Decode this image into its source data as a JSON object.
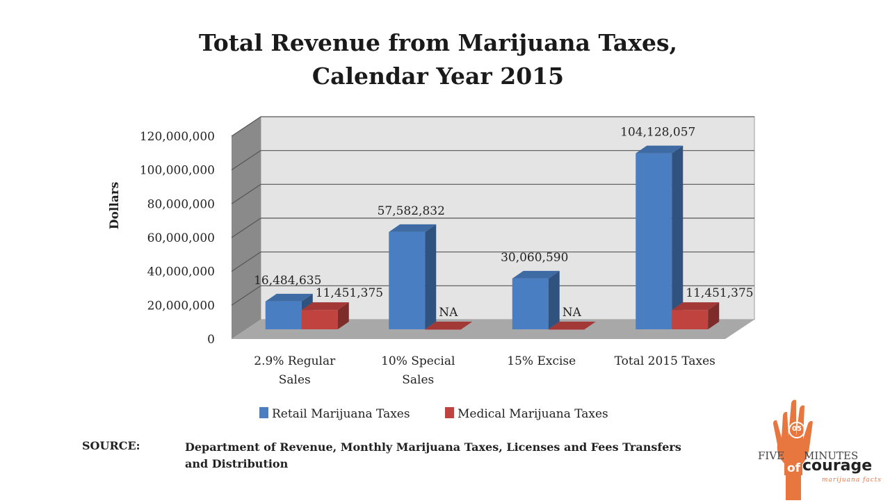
{
  "chart_data": {
    "type": "bar",
    "title": "Total Revenue from Marijuana Taxes,",
    "subtitle": "Calendar Year 2015",
    "ylabel": "Dollars",
    "xlabel": "",
    "ylim": [
      0,
      120000000
    ],
    "yticks": [
      0,
      20000000,
      40000000,
      60000000,
      80000000,
      100000000,
      120000000
    ],
    "ytick_labels": [
      "0",
      "20,000,000",
      "40,000,000",
      "60,000,000",
      "80,000,000",
      "100,000,000",
      "120,000,000"
    ],
    "categories": [
      [
        "2.9% Regular",
        "Sales"
      ],
      [
        "10% Special",
        "Sales"
      ],
      [
        "15% Excise"
      ],
      [
        "Total 2015 Taxes"
      ]
    ],
    "series": [
      {
        "name": "Retail Marijuana Taxes",
        "color": "#4a7ec2",
        "values": [
          16484635,
          57582832,
          30060590,
          104128057
        ],
        "labels": [
          "16,484,635",
          "57,582,832",
          "30,060,590",
          "104,128,057"
        ]
      },
      {
        "name": "Medical Marijuana Taxes",
        "color": "#c0433f",
        "values": [
          11451375,
          0,
          0,
          11451375
        ],
        "labels": [
          "11,451,375",
          "NA",
          "NA",
          "11,451,375"
        ]
      }
    ],
    "grid": true,
    "legend_position": "bottom",
    "style": "3d"
  },
  "source": {
    "label": "SOURCE:",
    "text": "Department of Revenue, Monthly Marijuana Taxes, Licenses and Fees Transfers and Distribution"
  },
  "logo": {
    "word1": "FIVE",
    "word2": "MINUTES",
    "word3": "of",
    "word4": "courage",
    "tagline": "marijuana facts",
    "badge": "05",
    "color": "#e8763f"
  }
}
